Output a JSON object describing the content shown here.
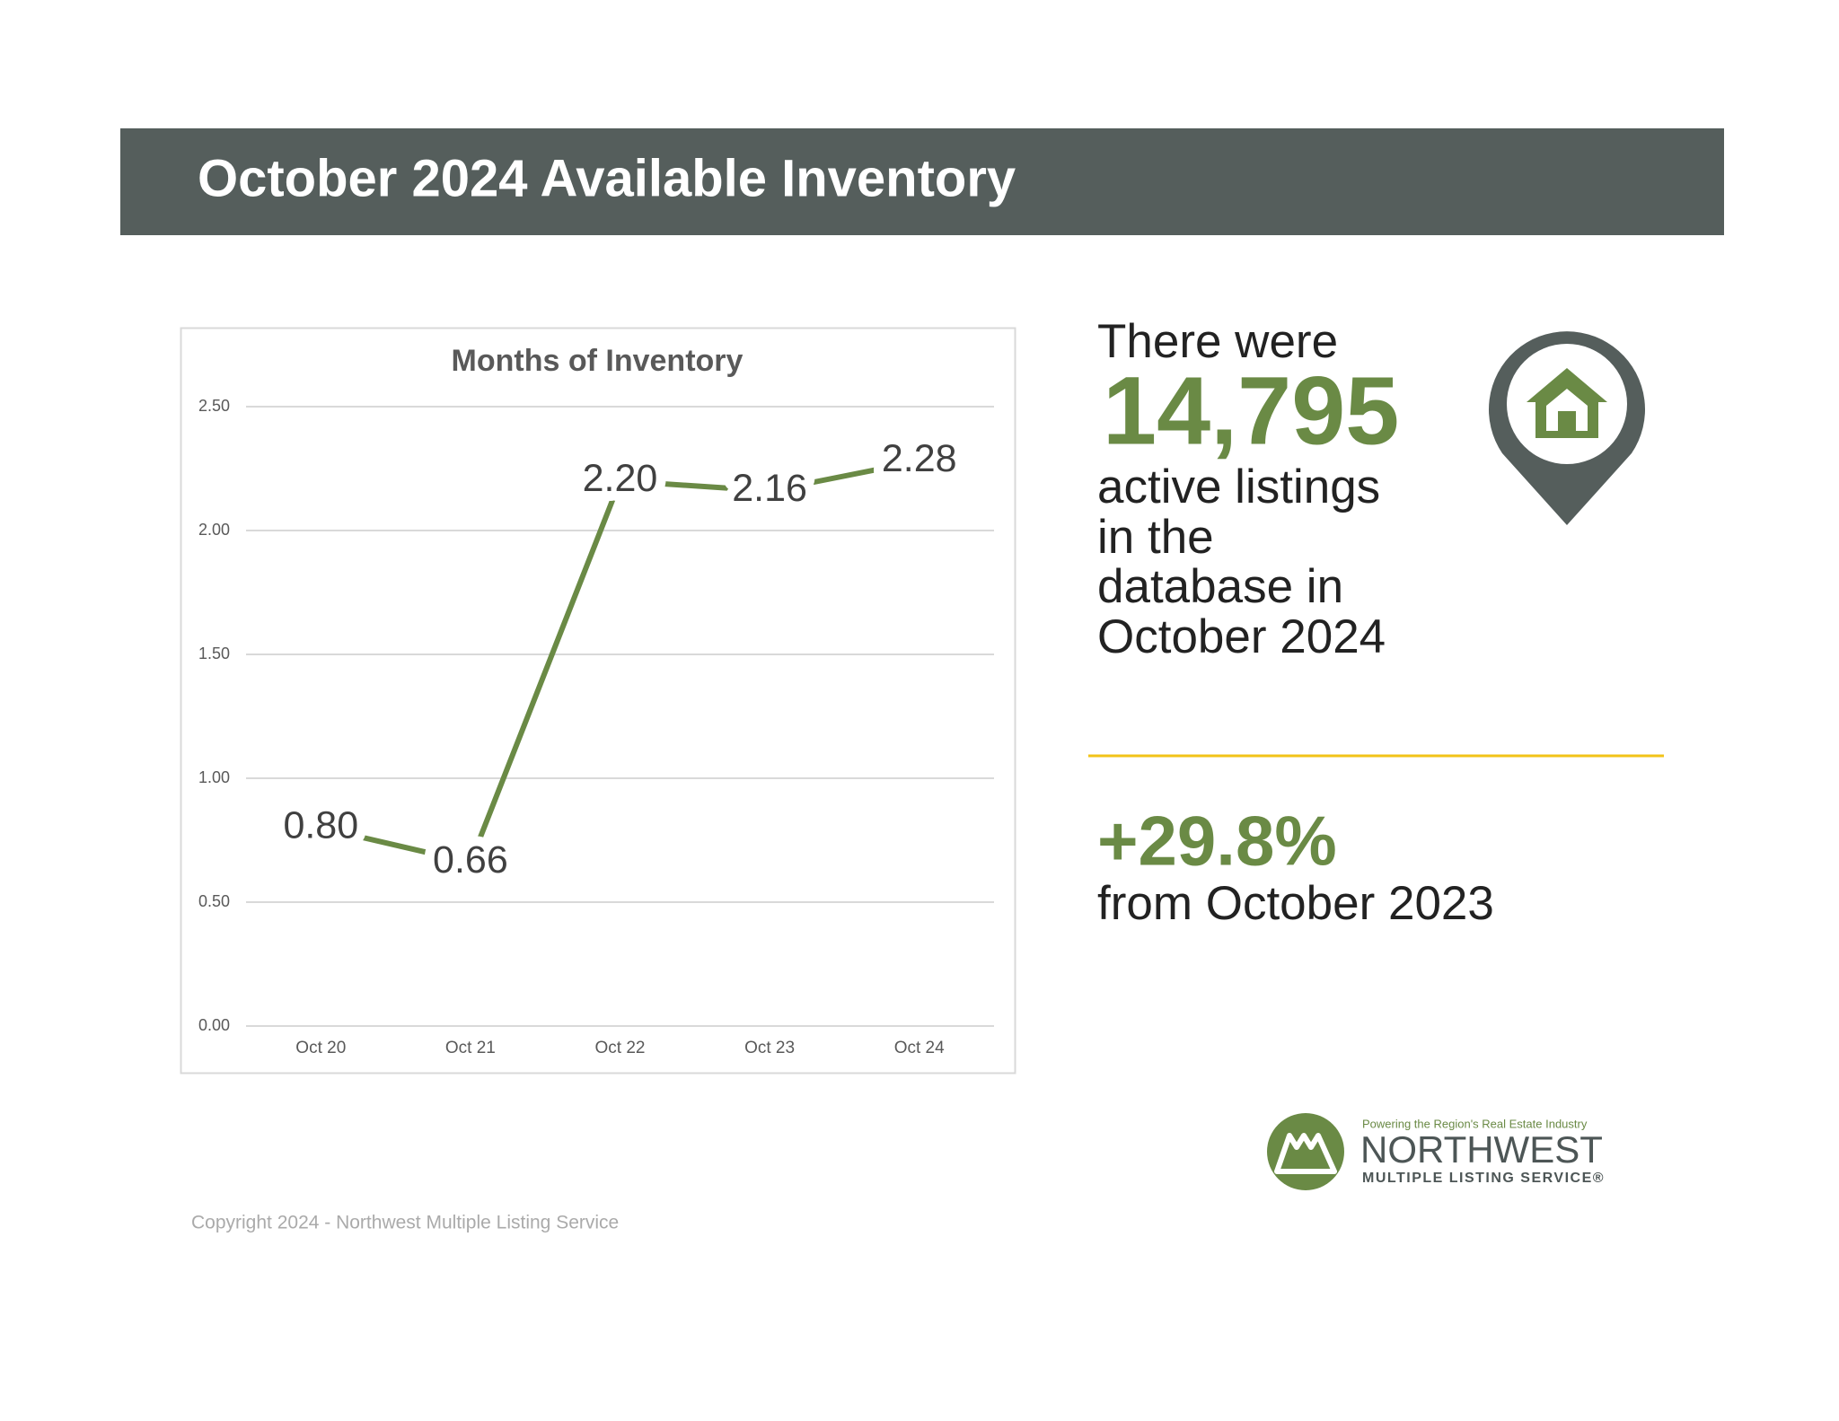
{
  "header": {
    "title": "October 2024 Available Inventory"
  },
  "chart_data": {
    "type": "line",
    "title": "Months of Inventory",
    "categories": [
      "Oct 20",
      "Oct 21",
      "Oct 22",
      "Oct 23",
      "Oct 24"
    ],
    "series": [
      {
        "name": "Months of Inventory",
        "color": "#6a8a45",
        "values": [
          0.8,
          0.66,
          2.2,
          2.16,
          2.28
        ],
        "value_labels": [
          "0.80",
          "0.66",
          "2.20",
          "2.16",
          "2.28"
        ]
      }
    ],
    "ylim": [
      0,
      2.5
    ],
    "yticks": [
      {
        "value": 0,
        "label": "0.00"
      },
      {
        "value": 0.5,
        "label": "0.50"
      },
      {
        "value": 1,
        "label": "1.00"
      },
      {
        "value": 1.5,
        "label": "1.50"
      },
      {
        "value": 2,
        "label": "2.00"
      },
      {
        "value": 2.5,
        "label": "2.50"
      }
    ],
    "grid": true
  },
  "stats": {
    "intro": "There were",
    "count": "14,795",
    "lines": [
      "active listings",
      "in the",
      "database in",
      "October 2024"
    ],
    "change": "+29.8%",
    "change_note": "from October 2023"
  },
  "logo": {
    "tagline": "Powering the Region's Real Estate Industry",
    "name": "NORTHWEST",
    "subname": "MULTIPLE LISTING SERVICE®"
  },
  "footer": {
    "copyright": "Copyright 2024 - Northwest Multiple Listing Service"
  }
}
